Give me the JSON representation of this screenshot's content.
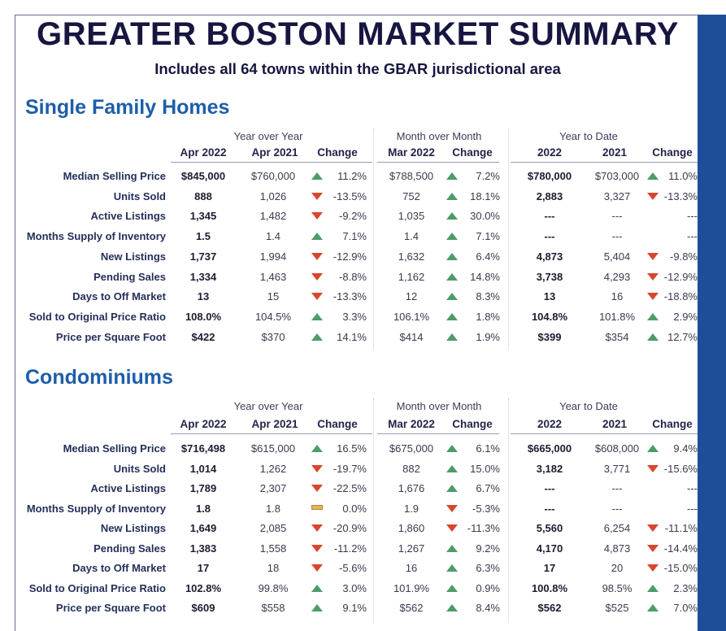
{
  "title": "GREATER BOSTON MARKET SUMMARY",
  "subtitle": "Includes all 64 towns within the GBAR jurisdictional area",
  "colors": {
    "title": "#161640",
    "section": "#1f5ea8",
    "up": "#4e9c67",
    "down": "#d9452f",
    "flat": "#e6b35a",
    "bar": "#1e4d9a"
  },
  "column_groups": {
    "yoy": "Year over Year",
    "mom": "Month over Month",
    "ytd": "Year to Date"
  },
  "sections": [
    {
      "name": "Single Family Homes",
      "headers": [
        "Apr 2022",
        "Apr 2021",
        "Change",
        "Mar 2022",
        "Change",
        "2022",
        "2021",
        "Change"
      ],
      "rows": [
        {
          "metric": "Median Selling Price",
          "cur": "$845,000",
          "yoy": "$760,000",
          "yoy_dir": "up",
          "yoy_chg": "11.2%",
          "mom": "$788,500",
          "mom_dir": "up",
          "mom_chg": "7.2%",
          "ytd_cur": "$780,000",
          "ytd_prev": "$703,000",
          "ytd_dir": "up",
          "ytd_chg": "11.0%"
        },
        {
          "metric": "Units Sold",
          "cur": "888",
          "yoy": "1,026",
          "yoy_dir": "down",
          "yoy_chg": "-13.5%",
          "mom": "752",
          "mom_dir": "up",
          "mom_chg": "18.1%",
          "ytd_cur": "2,883",
          "ytd_prev": "3,327",
          "ytd_dir": "down",
          "ytd_chg": "-13.3%"
        },
        {
          "metric": "Active Listings",
          "cur": "1,345",
          "yoy": "1,482",
          "yoy_dir": "down",
          "yoy_chg": "-9.2%",
          "mom": "1,035",
          "mom_dir": "up",
          "mom_chg": "30.0%",
          "ytd_cur": "---",
          "ytd_prev": "---",
          "ytd_dir": "",
          "ytd_chg": "---"
        },
        {
          "metric": "Months Supply of Inventory",
          "cur": "1.5",
          "yoy": "1.4",
          "yoy_dir": "up",
          "yoy_chg": "7.1%",
          "mom": "1.4",
          "mom_dir": "up",
          "mom_chg": "7.1%",
          "ytd_cur": "---",
          "ytd_prev": "---",
          "ytd_dir": "",
          "ytd_chg": "---"
        },
        {
          "metric": "New Listings",
          "cur": "1,737",
          "yoy": "1,994",
          "yoy_dir": "down",
          "yoy_chg": "-12.9%",
          "mom": "1,632",
          "mom_dir": "up",
          "mom_chg": "6.4%",
          "ytd_cur": "4,873",
          "ytd_prev": "5,404",
          "ytd_dir": "down",
          "ytd_chg": "-9.8%"
        },
        {
          "metric": "Pending Sales",
          "cur": "1,334",
          "yoy": "1,463",
          "yoy_dir": "down",
          "yoy_chg": "-8.8%",
          "mom": "1,162",
          "mom_dir": "up",
          "mom_chg": "14.8%",
          "ytd_cur": "3,738",
          "ytd_prev": "4,293",
          "ytd_dir": "down",
          "ytd_chg": "-12.9%"
        },
        {
          "metric": "Days to Off Market",
          "cur": "13",
          "yoy": "15",
          "yoy_dir": "down",
          "yoy_chg": "-13.3%",
          "mom": "12",
          "mom_dir": "up",
          "mom_chg": "8.3%",
          "ytd_cur": "13",
          "ytd_prev": "16",
          "ytd_dir": "down",
          "ytd_chg": "-18.8%"
        },
        {
          "metric": "Sold to Original Price Ratio",
          "cur": "108.0%",
          "yoy": "104.5%",
          "yoy_dir": "up",
          "yoy_chg": "3.3%",
          "mom": "106.1%",
          "mom_dir": "up",
          "mom_chg": "1.8%",
          "ytd_cur": "104.8%",
          "ytd_prev": "101.8%",
          "ytd_dir": "up",
          "ytd_chg": "2.9%"
        },
        {
          "metric": "Price per Square Foot",
          "cur": "$422",
          "yoy": "$370",
          "yoy_dir": "up",
          "yoy_chg": "14.1%",
          "mom": "$414",
          "mom_dir": "up",
          "mom_chg": "1.9%",
          "ytd_cur": "$399",
          "ytd_prev": "$354",
          "ytd_dir": "up",
          "ytd_chg": "12.7%"
        }
      ]
    },
    {
      "name": "Condominiums",
      "headers": [
        "Apr 2022",
        "Apr 2021",
        "Change",
        "Mar 2022",
        "Change",
        "2022",
        "2021",
        "Change"
      ],
      "rows": [
        {
          "metric": "Median Selling Price",
          "cur": "$716,498",
          "yoy": "$615,000",
          "yoy_dir": "up",
          "yoy_chg": "16.5%",
          "mom": "$675,000",
          "mom_dir": "up",
          "mom_chg": "6.1%",
          "ytd_cur": "$665,000",
          "ytd_prev": "$608,000",
          "ytd_dir": "up",
          "ytd_chg": "9.4%"
        },
        {
          "metric": "Units Sold",
          "cur": "1,014",
          "yoy": "1,262",
          "yoy_dir": "down",
          "yoy_chg": "-19.7%",
          "mom": "882",
          "mom_dir": "up",
          "mom_chg": "15.0%",
          "ytd_cur": "3,182",
          "ytd_prev": "3,771",
          "ytd_dir": "down",
          "ytd_chg": "-15.6%"
        },
        {
          "metric": "Active Listings",
          "cur": "1,789",
          "yoy": "2,307",
          "yoy_dir": "down",
          "yoy_chg": "-22.5%",
          "mom": "1,676",
          "mom_dir": "up",
          "mom_chg": "6.7%",
          "ytd_cur": "---",
          "ytd_prev": "---",
          "ytd_dir": "",
          "ytd_chg": "---"
        },
        {
          "metric": "Months Supply of Inventory",
          "cur": "1.8",
          "yoy": "1.8",
          "yoy_dir": "flat",
          "yoy_chg": "0.0%",
          "mom": "1.9",
          "mom_dir": "down",
          "mom_chg": "-5.3%",
          "ytd_cur": "---",
          "ytd_prev": "---",
          "ytd_dir": "",
          "ytd_chg": "---"
        },
        {
          "metric": "New Listings",
          "cur": "1,649",
          "yoy": "2,085",
          "yoy_dir": "down",
          "yoy_chg": "-20.9%",
          "mom": "1,860",
          "mom_dir": "down",
          "mom_chg": "-11.3%",
          "ytd_cur": "5,560",
          "ytd_prev": "6,254",
          "ytd_dir": "down",
          "ytd_chg": "-11.1%"
        },
        {
          "metric": "Pending Sales",
          "cur": "1,383",
          "yoy": "1,558",
          "yoy_dir": "down",
          "yoy_chg": "-11.2%",
          "mom": "1,267",
          "mom_dir": "up",
          "mom_chg": "9.2%",
          "ytd_cur": "4,170",
          "ytd_prev": "4,873",
          "ytd_dir": "down",
          "ytd_chg": "-14.4%"
        },
        {
          "metric": "Days to Off Market",
          "cur": "17",
          "yoy": "18",
          "yoy_dir": "down",
          "yoy_chg": "-5.6%",
          "mom": "16",
          "mom_dir": "up",
          "mom_chg": "6.3%",
          "ytd_cur": "17",
          "ytd_prev": "20",
          "ytd_dir": "down",
          "ytd_chg": "-15.0%"
        },
        {
          "metric": "Sold to Original Price Ratio",
          "cur": "102.8%",
          "yoy": "99.8%",
          "yoy_dir": "up",
          "yoy_chg": "3.0%",
          "mom": "101.9%",
          "mom_dir": "up",
          "mom_chg": "0.9%",
          "ytd_cur": "100.8%",
          "ytd_prev": "98.5%",
          "ytd_dir": "up",
          "ytd_chg": "2.3%"
        },
        {
          "metric": "Price per Square Foot",
          "cur": "$609",
          "yoy": "$558",
          "yoy_dir": "up",
          "yoy_chg": "9.1%",
          "mom": "$562",
          "mom_dir": "up",
          "mom_chg": "8.4%",
          "ytd_cur": "$562",
          "ytd_prev": "$525",
          "ytd_dir": "up",
          "ytd_chg": "7.0%"
        }
      ]
    }
  ]
}
